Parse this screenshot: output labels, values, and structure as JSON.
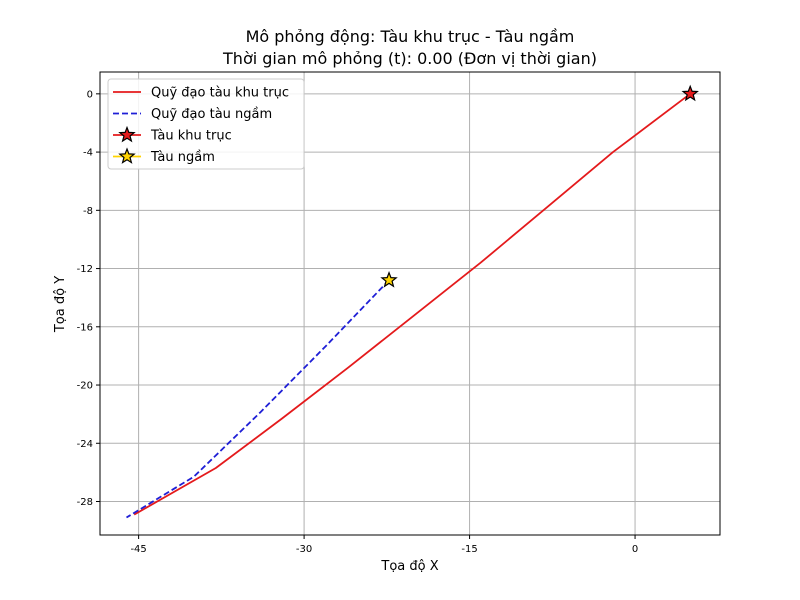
{
  "chart_data": {
    "type": "line",
    "title": "Mô phỏng động: Tàu khu trục - Tàu ngầm",
    "subtitle": "Thời gian mô phỏng (t): 0.00 (Đơn vị thời gian)",
    "xlabel": "Tọa độ X",
    "ylabel": "Tọa độ Y",
    "xlim": [
      -48.5,
      7.7
    ],
    "ylim": [
      -30.3,
      1.5
    ],
    "xticks": [
      -45,
      -30,
      -15,
      0
    ],
    "xtick_labels": [
      "-45",
      "-30",
      "-15",
      "0"
    ],
    "yticks": [
      0,
      -4,
      -8,
      -12,
      -16,
      -20,
      -24,
      -28
    ],
    "ytick_labels": [
      "0",
      "-4",
      "-8",
      "-12",
      "-16",
      "-20",
      "-24",
      "-28"
    ],
    "grid": true,
    "legend_position": "top-left",
    "series": [
      {
        "name": "Quỹ đạo tàu khu trục",
        "kind": "line",
        "style": "solid",
        "color": "#e41a1c",
        "x": [
          5,
          -2,
          -8,
          -14,
          -20,
          -26,
          -32,
          -38,
          -45.4
        ],
        "y": [
          0,
          -4,
          -7.8,
          -11.6,
          -15.2,
          -18.8,
          -22.3,
          -25.7,
          -28.9
        ]
      },
      {
        "name": "Quỹ đạo tàu ngầm",
        "kind": "line",
        "style": "dashed",
        "color": "#1f1fd6",
        "x": [
          -22.3,
          -28,
          -34,
          -40,
          -46.1
        ],
        "y": [
          -12.8,
          -17.3,
          -21.9,
          -26.3,
          -29.1
        ]
      },
      {
        "name": "Tàu khu trục",
        "kind": "marker",
        "marker": "star",
        "color": "#e41a1c",
        "line_color": "#e41a1c",
        "x": [
          5
        ],
        "y": [
          0
        ]
      },
      {
        "name": "Tàu ngầm",
        "kind": "marker",
        "marker": "star",
        "color": "#ffd400",
        "line_color": "#ffd400",
        "x": [
          -22.3
        ],
        "y": [
          -12.8
        ]
      }
    ]
  }
}
